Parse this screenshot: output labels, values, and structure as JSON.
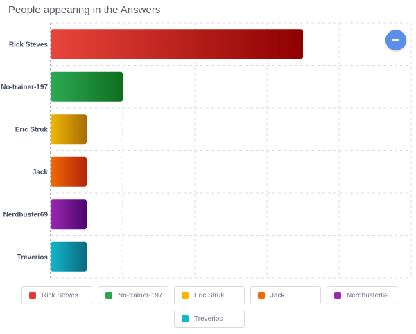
{
  "chart_title": "People appearing in the Answers",
  "menu": {
    "icon": "hamburger-icon"
  },
  "chart_data": {
    "type": "bar",
    "orientation": "horizontal",
    "title": "People appearing in the Answers",
    "categories": [
      "Rick Steves",
      "No-trainer-197",
      "Eric Struk",
      "Jack",
      "Nerdbuster69",
      "Treverios"
    ],
    "values": [
      7,
      2,
      1,
      1,
      1,
      1
    ],
    "xlim": [
      0,
      10
    ],
    "grid": true,
    "legend_position": "bottom",
    "colors": [
      {
        "from": "#e8463a",
        "to": "#8e0000"
      },
      {
        "from": "#2eaa55",
        "to": "#0f6e1e"
      },
      {
        "from": "#f2b705",
        "to": "#a56d06"
      },
      {
        "from": "#f26a05",
        "to": "#b3240b"
      },
      {
        "from": "#9b27b0",
        "to": "#4c0670"
      },
      {
        "from": "#11b7cc",
        "to": "#0a6a80"
      }
    ]
  },
  "legend": {
    "items": [
      {
        "label": "Rick Steves",
        "color": "#e53935"
      },
      {
        "label": "No-trainer-197",
        "color": "#2ea44f"
      },
      {
        "label": "Eric Struk",
        "color": "#f2b705"
      },
      {
        "label": "Jack",
        "color": "#f26a05"
      },
      {
        "label": "Nerdbuster69",
        "color": "#9b27b0"
      },
      {
        "label": "Treverios",
        "color": "#11b7cc"
      }
    ]
  }
}
